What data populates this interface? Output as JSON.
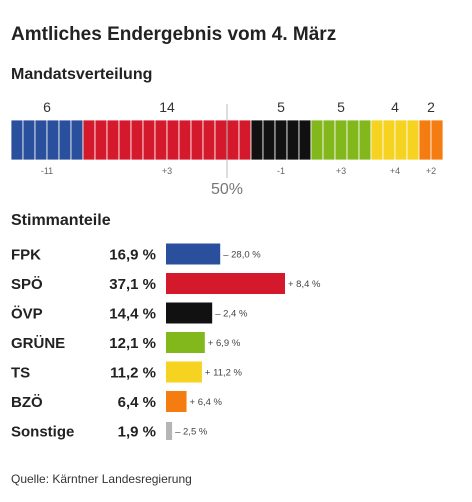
{
  "title": "Amtliches Endergebnis vom 4. März",
  "seats_heading": "Mandatsverteilung",
  "votes_heading": "Stimmanteile",
  "majority_label": "50%",
  "source": "Quelle: Kärntner Landesregierung",
  "chart_data": [
    {
      "type": "bar",
      "subtype": "stacked-seats",
      "title": "Mandatsverteilung",
      "categories": [
        "FPK",
        "SPÖ",
        "ÖVP",
        "GRÜNE",
        "TS",
        "BZÖ"
      ],
      "values": [
        6,
        14,
        5,
        5,
        4,
        2
      ],
      "value_labels": [
        "6",
        "14",
        "5",
        "5",
        "4",
        "2"
      ],
      "changes": [
        "-11",
        "+3",
        "-1",
        "+3",
        "+4",
        "+2"
      ],
      "total_seats": 36,
      "majority_marker": "50%",
      "colors": [
        "#2a4f9c",
        "#d4192c",
        "#111111",
        "#83b81d",
        "#f5d320",
        "#f47c10"
      ]
    },
    {
      "type": "bar",
      "subtype": "horizontal",
      "title": "Stimmanteile",
      "categories": [
        "FPK",
        "SPÖ",
        "ÖVP",
        "GRÜNE",
        "TS",
        "BZÖ",
        "Sonstige"
      ],
      "values": [
        16.9,
        37.1,
        14.4,
        12.1,
        11.2,
        6.4,
        1.9
      ],
      "value_labels": [
        "16,9 %",
        "37,1 %",
        "14,4 %",
        "12,1 %",
        "11,2 %",
        "6,4 %",
        "1,9 %"
      ],
      "changes": [
        "– 28,0 %",
        "+ 8,4 %",
        "– 2,4 %",
        "+ 6,9 %",
        "+ 11,2 %",
        "+ 6,4 %",
        "– 2,5 %"
      ],
      "xlim": [
        0,
        37.1
      ],
      "colors": [
        "#2a4f9c",
        "#d4192c",
        "#111111",
        "#83b81d",
        "#f5d320",
        "#f47c10",
        "#b5b5b5"
      ]
    }
  ]
}
